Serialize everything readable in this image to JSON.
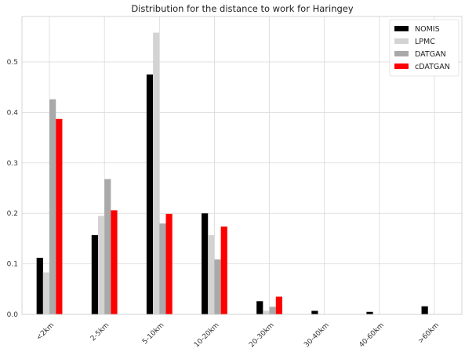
{
  "chart_data": {
    "type": "bar",
    "title": "Distribution for the distance to work for Haringey",
    "xlabel": "",
    "ylabel": "",
    "categories": [
      "<2km",
      "2-5km",
      "5-10km",
      "10-20km",
      "20-30km",
      "30-40km",
      "40-60km",
      ">60km"
    ],
    "series": [
      {
        "name": "NOMIS",
        "color": "#000000",
        "values": [
          0.112,
          0.157,
          0.475,
          0.2,
          0.026,
          0.007,
          0.005,
          0.016
        ]
      },
      {
        "name": "LPMC",
        "color": "#d3d3d3",
        "values": [
          0.083,
          0.195,
          0.558,
          0.157,
          0.007,
          0.0,
          0.0,
          0.0
        ]
      },
      {
        "name": "DATGAN",
        "color": "#a9a9a9",
        "values": [
          0.426,
          0.268,
          0.18,
          0.109,
          0.015,
          0.0,
          0.0,
          0.0
        ]
      },
      {
        "name": "cDATGAN",
        "color": "#ff0000",
        "values": [
          0.387,
          0.206,
          0.199,
          0.174,
          0.035,
          0.0,
          0.0,
          0.0
        ]
      }
    ],
    "ylim": [
      0,
      0.59
    ],
    "yticks": [
      "0.0",
      "0.1",
      "0.2",
      "0.3",
      "0.4",
      "0.5"
    ],
    "grid": true,
    "legend_position": "top-right"
  }
}
